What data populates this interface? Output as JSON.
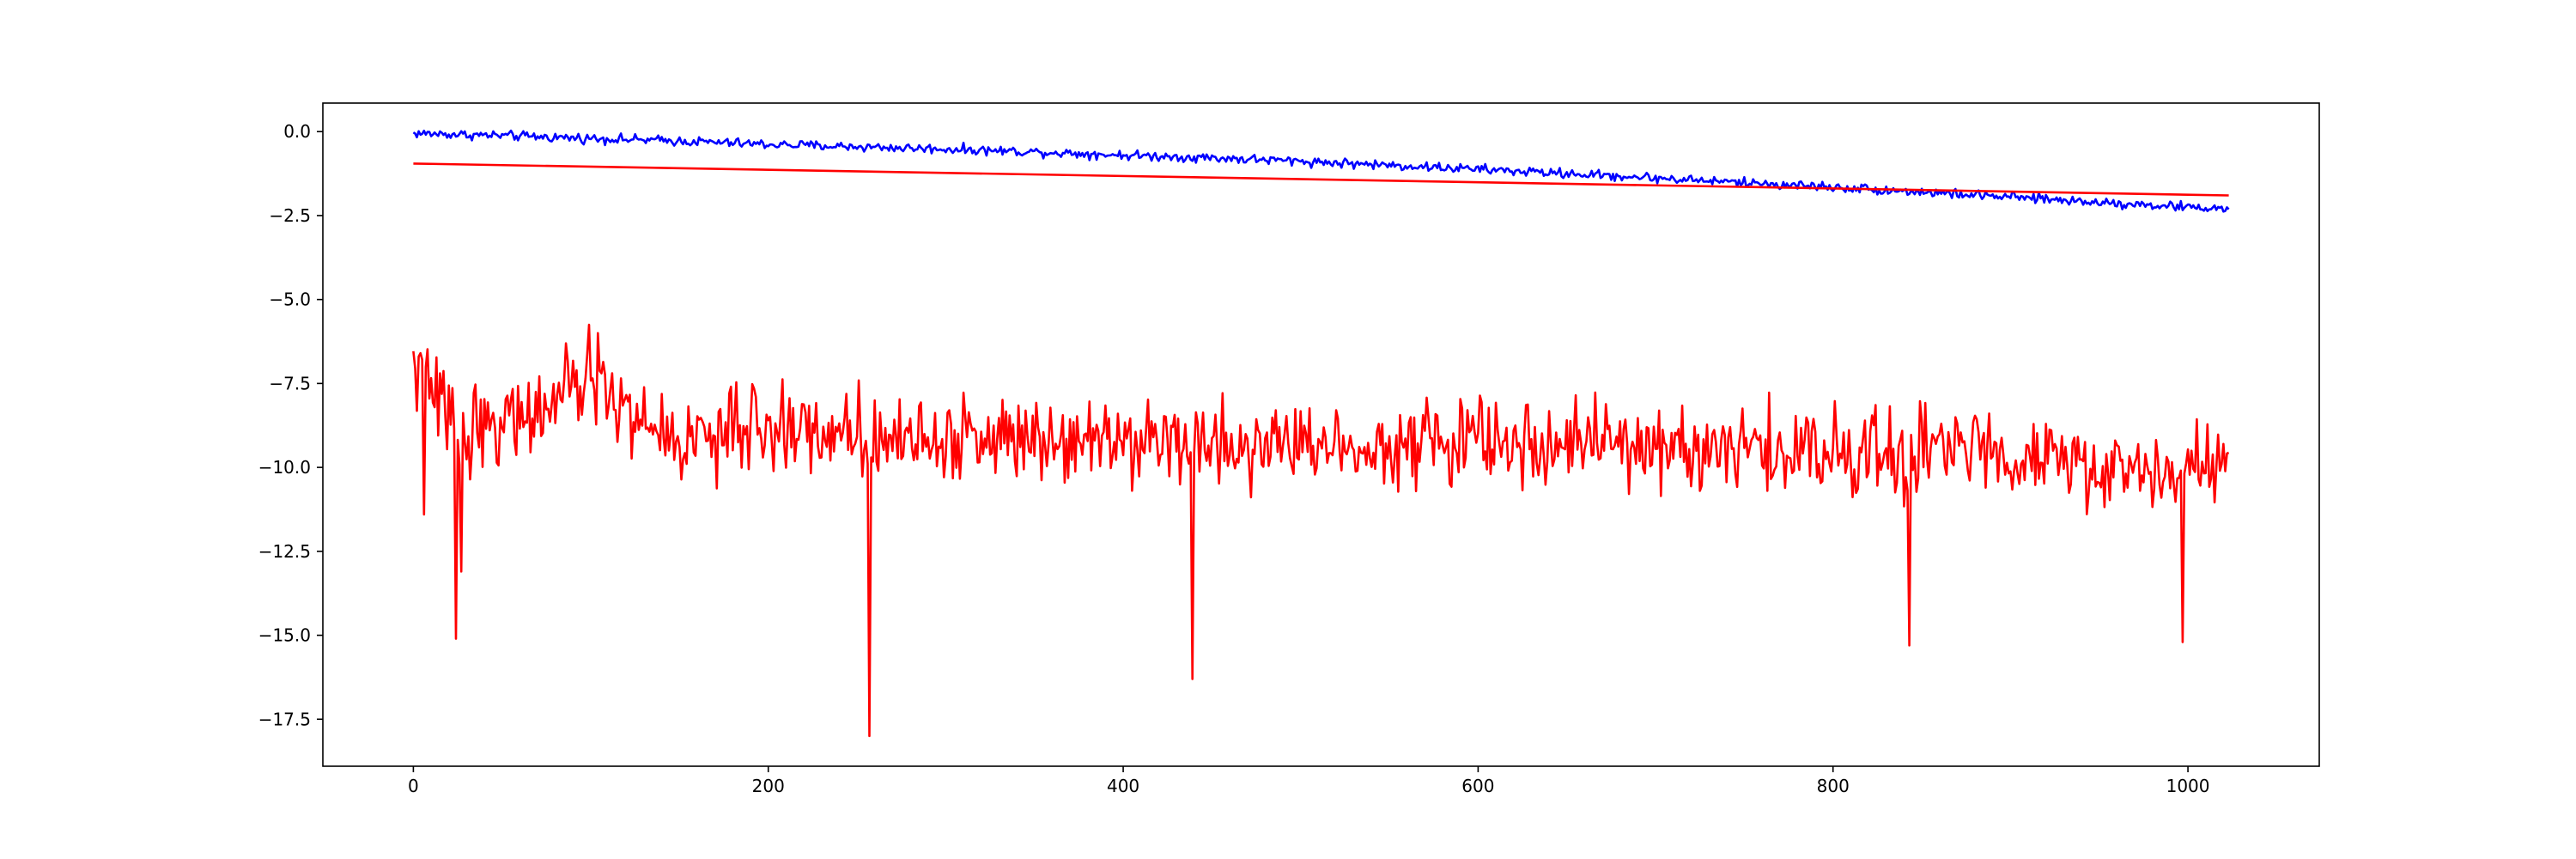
{
  "chart_data": {
    "type": "line",
    "title": "",
    "xlabel": "",
    "ylabel": "",
    "xlim": [
      -51,
      1074
    ],
    "ylim": [
      -18.9,
      0.85
    ],
    "grid": false,
    "legend": "none",
    "x_ticks": [
      0,
      200,
      400,
      600,
      800,
      1000
    ],
    "x_tick_labels": [
      "0",
      "200",
      "400",
      "600",
      "800",
      "1000"
    ],
    "y_ticks": [
      0,
      -2.5,
      -5,
      -7.5,
      -10,
      -12.5,
      -15,
      -17.5
    ],
    "y_tick_labels": [
      "0.0",
      "−2.5",
      "−5.0",
      "−7.5",
      "−10.0",
      "−12.5",
      "−15.0",
      "−17.5"
    ],
    "series": [
      {
        "color": "#0000ff",
        "style": "noisy-line",
        "x": [
          0,
          50,
          100,
          150,
          200,
          250,
          300,
          350,
          400,
          450,
          500,
          550,
          600,
          650,
          700,
          750,
          800,
          850,
          900,
          950,
          1000,
          1023
        ],
        "values": [
          -0.05,
          -0.12,
          -0.2,
          -0.28,
          -0.38,
          -0.45,
          -0.52,
          -0.6,
          -0.7,
          -0.78,
          -0.88,
          -1.0,
          -1.12,
          -1.25,
          -1.38,
          -1.52,
          -1.65,
          -1.8,
          -1.95,
          -2.1,
          -2.25,
          -2.3
        ],
        "noise": 0.1
      },
      {
        "color": "#ff0000",
        "style": "straight-line",
        "x": [
          0,
          1023
        ],
        "values": [
          -0.95,
          -1.9
        ]
      },
      {
        "color": "#ff0000",
        "style": "noisy-line",
        "x": [
          0,
          25,
          50,
          75,
          100,
          125,
          150,
          200,
          257,
          300,
          350,
          400,
          439,
          500,
          550,
          600,
          650,
          700,
          750,
          800,
          843,
          900,
          950,
          1000,
          1023
        ],
        "values": [
          -6.9,
          -8.9,
          -8.6,
          -8.3,
          -7.3,
          -8.6,
          -9.2,
          -8.8,
          -9.0,
          -9.2,
          -9.0,
          -9.0,
          -9.3,
          -9.3,
          -9.3,
          -9.2,
          -9.3,
          -9.4,
          -9.5,
          -9.5,
          -9.6,
          -9.4,
          -10.2,
          -10.0,
          -9.9
        ],
        "noise": 0.9,
        "spikes": [
          {
            "x": 3,
            "y": -6.7
          },
          {
            "x": 6,
            "y": -11.4
          },
          {
            "x": 24,
            "y": -15.1
          },
          {
            "x": 27,
            "y": -13.1
          },
          {
            "x": 104,
            "y": -6.0
          },
          {
            "x": 257,
            "y": -18.0
          },
          {
            "x": 439,
            "y": -16.3
          },
          {
            "x": 843,
            "y": -15.3
          },
          {
            "x": 997,
            "y": -15.2
          }
        ]
      }
    ]
  }
}
